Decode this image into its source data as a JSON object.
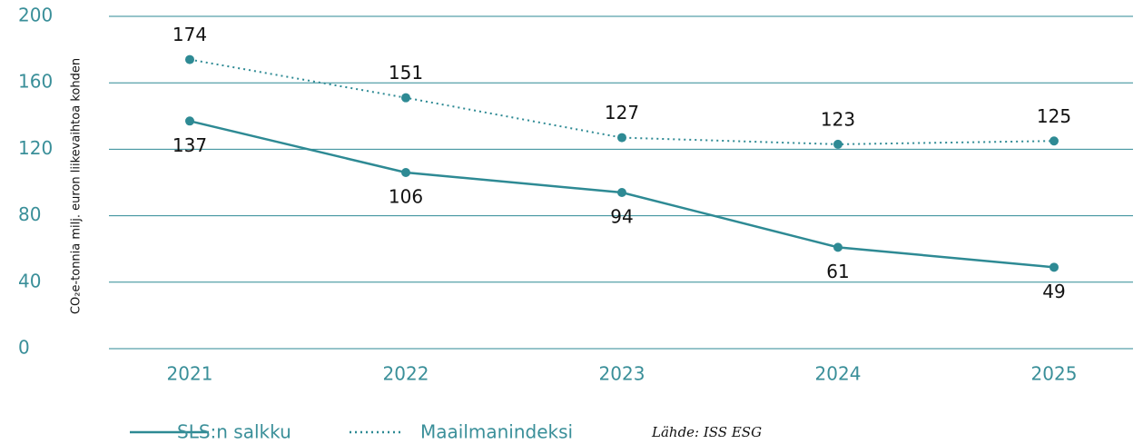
{
  "chart_data": {
    "type": "line",
    "y_label": "CO₂e-tonnia milj. euron liikevaihtoa kohden",
    "categories": [
      "2021",
      "2022",
      "2023",
      "2024",
      "2025"
    ],
    "series": [
      {
        "name": "SLS:n salkku",
        "color": "#2e8a94",
        "style": "solid",
        "values": [
          137,
          106,
          94,
          61,
          49
        ]
      },
      {
        "name": "Maailmanindeksi",
        "color": "#2e8a94",
        "style": "dotted",
        "values": [
          174,
          151,
          127,
          123,
          125
        ]
      }
    ],
    "ylim": [
      0,
      200
    ],
    "yticks": [
      0,
      40,
      80,
      120,
      160,
      200
    ],
    "grid": true,
    "source": "Lähde: ISS ESG"
  }
}
